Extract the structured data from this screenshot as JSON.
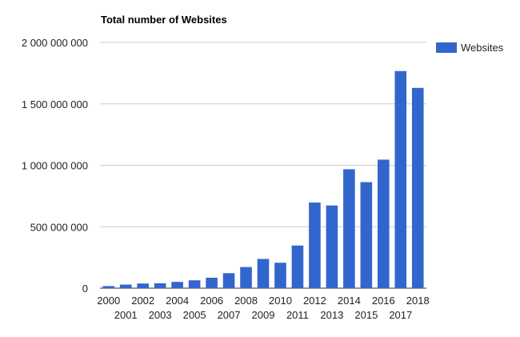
{
  "chart_data": {
    "type": "bar",
    "title": "Total number of Websites",
    "xlabel": "",
    "ylabel": "",
    "categories": [
      "2000",
      "2001",
      "2002",
      "2003",
      "2004",
      "2005",
      "2006",
      "2007",
      "2008",
      "2009",
      "2010",
      "2011",
      "2012",
      "2013",
      "2014",
      "2015",
      "2016",
      "2017",
      "2018"
    ],
    "series": [
      {
        "name": "Websites",
        "color": "#3366cc",
        "values": [
          17000000,
          29000000,
          38000000,
          40000000,
          51000000,
          64000000,
          85000000,
          122000000,
          172000000,
          238000000,
          207000000,
          347000000,
          697000000,
          673000000,
          968000000,
          863000000,
          1046000000,
          1767000000,
          1630000000
        ]
      }
    ],
    "ylim": [
      0,
      2000000000
    ],
    "yticks": [
      0,
      500000000,
      1000000000,
      1500000000,
      2000000000
    ],
    "ytick_labels": [
      "0",
      "500 000 000",
      "1 000 000 000",
      "1 500 000 000",
      "2 000 000 000"
    ],
    "grid": true,
    "legend_position": "right"
  }
}
